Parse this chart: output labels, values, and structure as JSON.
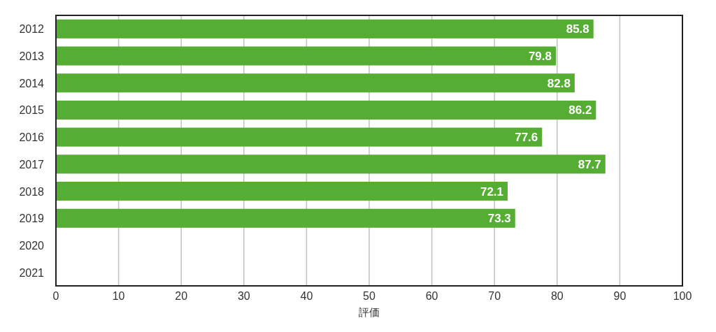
{
  "chart_data": {
    "type": "bar",
    "orientation": "horizontal",
    "categories": [
      "2012",
      "2013",
      "2014",
      "2015",
      "2016",
      "2017",
      "2018",
      "2019",
      "2020",
      "2021"
    ],
    "values": [
      85.8,
      79.8,
      82.8,
      86.2,
      77.6,
      87.7,
      72.1,
      73.3,
      null,
      null
    ],
    "color": "#55ae33",
    "xlim": [
      0,
      100
    ],
    "xticks": [
      0,
      10,
      20,
      30,
      40,
      50,
      60,
      70,
      80,
      90,
      100
    ],
    "xlabel": "評価",
    "grid": "x",
    "data_labels": true
  }
}
